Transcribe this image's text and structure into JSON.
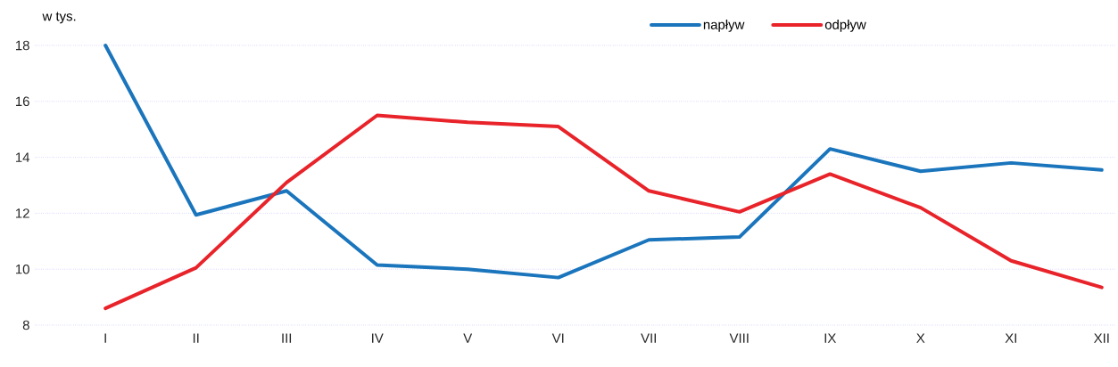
{
  "chart_data": {
    "type": "line",
    "ylabel": "w tys.",
    "categories": [
      "I",
      "II",
      "III",
      "IV",
      "V",
      "VI",
      "VII",
      "VIII",
      "IX",
      "X",
      "XI",
      "XII"
    ],
    "series": [
      {
        "name": "napływ",
        "color": "#1a75bc",
        "values": [
          18.0,
          11.94,
          12.8,
          10.15,
          10.0,
          9.7,
          11.05,
          11.15,
          14.3,
          13.5,
          13.8,
          13.55
        ]
      },
      {
        "name": "odpływ",
        "color": "#e8232a",
        "values": [
          8.6,
          10.05,
          13.1,
          15.5,
          15.25,
          15.1,
          12.8,
          12.05,
          13.4,
          12.2,
          10.3,
          9.35
        ]
      }
    ],
    "ylim": [
      8,
      18
    ],
    "yticks": [
      8,
      10,
      12,
      14,
      16,
      18
    ],
    "grid": "y",
    "legend": "top",
    "marker": "none",
    "line_style": "solid"
  }
}
